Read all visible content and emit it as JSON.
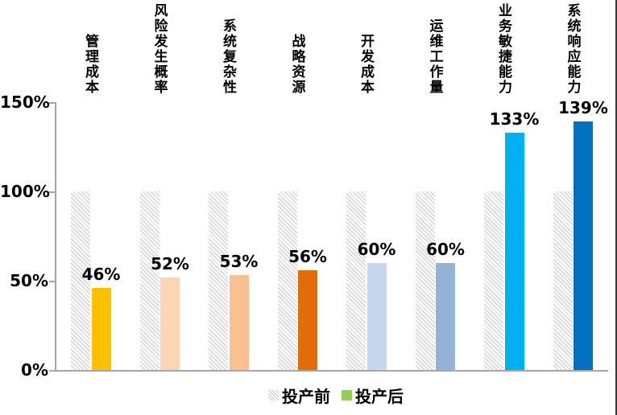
{
  "chart_data": {
    "type": "bar",
    "categories": [
      "管理成本",
      "风险发生概率",
      "系统复杂性",
      "战略资源",
      "开发成本",
      "运维工作量",
      "业务敏捷能力",
      "系统响应能力"
    ],
    "series": [
      {
        "name": "投产前",
        "values": [
          100,
          100,
          100,
          100,
          100,
          100,
          100,
          100
        ],
        "style": "hatched",
        "hatch_color": "#c6c6c6"
      },
      {
        "name": "投产后",
        "values": [
          46,
          52,
          53,
          56,
          60,
          60,
          133,
          139
        ],
        "colors": [
          "#FFC000",
          "#FCD5B4",
          "#FAC090",
          "#E36C0A",
          "#C6D9F1",
          "#95B3D7",
          "#00B0F0",
          "#0070C0"
        ],
        "legend_color": "#92D050"
      }
    ],
    "data_labels": [
      "46%",
      "52%",
      "53%",
      "56%",
      "60%",
      "60%",
      "133%",
      "139%"
    ],
    "y_ticks": [
      {
        "value": 0,
        "label": "0%"
      },
      {
        "value": 50,
        "label": "50%"
      },
      {
        "value": 100,
        "label": "100%"
      },
      {
        "value": 150,
        "label": "150%"
      }
    ],
    "ylim": [
      0,
      150
    ],
    "title": "",
    "xlabel": "",
    "ylabel": "",
    "grid": false,
    "legend_position": "bottom",
    "axis_color": "#a6a6a6"
  }
}
